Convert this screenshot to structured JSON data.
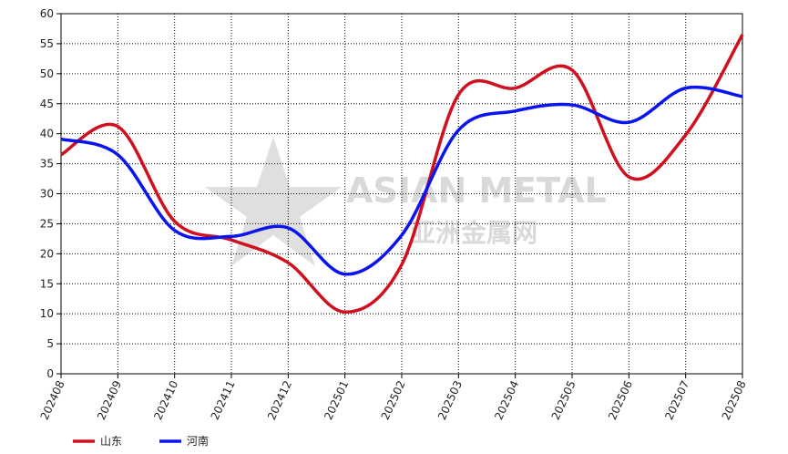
{
  "chart_data": {
    "type": "line",
    "categories": [
      "202408",
      "202409",
      "202410",
      "202411",
      "202412",
      "202501",
      "202502",
      "202503",
      "202504",
      "202505",
      "202506",
      "202507",
      "202508"
    ],
    "series": [
      {
        "name": "山东",
        "color": "#d0101e",
        "values": [
          36.5,
          41.2,
          25.4,
          22.3,
          18.5,
          10.3,
          18.2,
          46.5,
          47.6,
          50.6,
          32.8,
          39.8,
          56.5
        ]
      },
      {
        "name": "河南",
        "color": "#0a14f0",
        "values": [
          39.1,
          36.5,
          23.9,
          22.9,
          24.3,
          16.6,
          23.1,
          40.6,
          43.8,
          44.8,
          41.9,
          47.6,
          46.2
        ]
      }
    ],
    "ylim": [
      0,
      60
    ],
    "yticks": [
      0,
      5,
      10,
      15,
      20,
      25,
      30,
      35,
      40,
      45,
      50,
      55,
      60
    ],
    "grid": true,
    "watermark": [
      "ASIAN METAL",
      "亚洲金属网"
    ]
  }
}
